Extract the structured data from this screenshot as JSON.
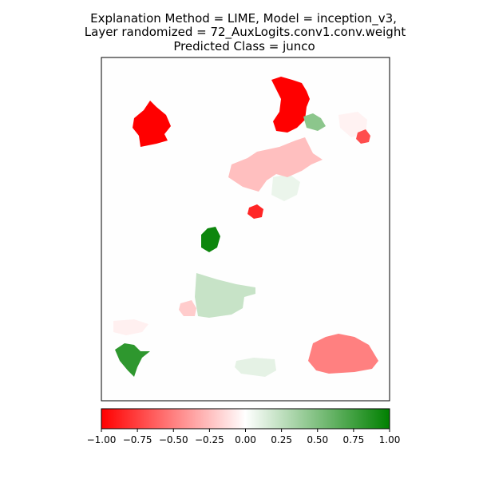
{
  "title": {
    "line1": "Explanation Method = LIME, Model = inception_v3,",
    "line2": "Layer randomized = 72_AuxLogits.conv1.conv.weight",
    "line3": "Predicted Class = junco"
  },
  "chart_data": {
    "type": "heatmap",
    "title": "Explanation Method = LIME, Model = inception_v3,\nLayer randomized = 72_AuxLogits.conv1.conv.weight\nPredicted Class = junco",
    "colormap": {
      "low": "#ff0000",
      "mid": "#ffffff",
      "high": "#008000"
    },
    "colorbar": {
      "vmin": -1.0,
      "vmax": 1.0,
      "ticks": [
        -1.0,
        -0.75,
        -0.5,
        -0.25,
        0.0,
        0.25,
        0.5,
        0.75,
        1.0
      ],
      "tick_labels": [
        "−1.00",
        "−0.75",
        "−0.50",
        "−0.25",
        "0.00",
        "0.25",
        "0.50",
        "0.75",
        "1.00"
      ]
    },
    "axes": {
      "xticks": false,
      "yticks": false
    },
    "segments": [
      {
        "id": "top-center-red",
        "value": -1.0
      },
      {
        "id": "upper-left-red",
        "value": -1.0
      },
      {
        "id": "small-right-red",
        "value": -0.7
      },
      {
        "id": "upper-center-green",
        "value": 0.45
      },
      {
        "id": "middle-pink-blob",
        "value": -0.25
      },
      {
        "id": "middle-faint-green",
        "value": 0.08
      },
      {
        "id": "small-center-red",
        "value": -0.85
      },
      {
        "id": "center-green",
        "value": 0.95
      },
      {
        "id": "large-center-light-green",
        "value": 0.22
      },
      {
        "id": "small-left-pink",
        "value": -0.2
      },
      {
        "id": "lower-left-green",
        "value": 0.82
      },
      {
        "id": "lower-left-faint-pink",
        "value": -0.06
      },
      {
        "id": "lower-right-salmon",
        "value": -0.5
      },
      {
        "id": "bottom-faint-green",
        "value": 0.1
      },
      {
        "id": "top-right-faint-pink",
        "value": -0.05
      }
    ]
  }
}
